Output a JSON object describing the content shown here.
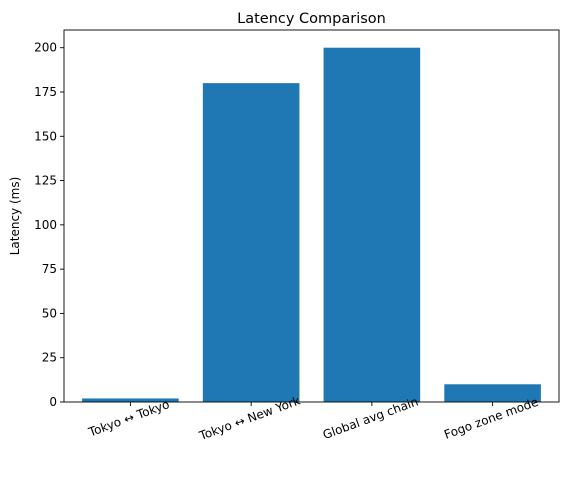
{
  "chart_data": {
    "type": "bar",
    "title": "Latency Comparison",
    "xlabel": "",
    "ylabel": "Latency (ms)",
    "categories": [
      "Tokyo ↔ Tokyo",
      "Tokyo ↔ New York",
      "Global avg chain",
      "Fogo zone mode"
    ],
    "values": [
      2,
      180,
      200,
      10
    ],
    "ylim": [
      0,
      210
    ],
    "yticks": [
      0,
      25,
      50,
      75,
      100,
      125,
      150,
      175,
      200
    ],
    "grid": false,
    "legend": "none",
    "bar_color": "#1f77b4"
  }
}
